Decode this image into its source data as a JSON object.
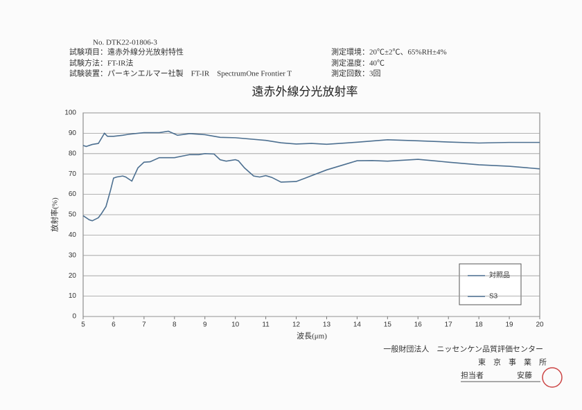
{
  "header": {
    "number": "No. DTK22-01806-3",
    "item": "試験項目：遠赤外線分光放射特性",
    "method": "試験方法：FT-IR法",
    "equipment": "試験装置：パーキンエルマー社製　FT-IR　SpectrumOne Frontier T",
    "environment": "測定環境：20℃±2℃、65%RH±4%",
    "temperature": "測定温度：40℃",
    "count": "測定回数：3回"
  },
  "chart_data": {
    "type": "line",
    "title": "遠赤外線分光放射率",
    "x_label": "波長(μm)",
    "y_label": "放射率(%)",
    "xlim": [
      5,
      20
    ],
    "xticks": [
      5,
      6,
      7,
      8,
      9,
      10,
      11,
      12,
      13,
      14,
      15,
      16,
      17,
      18,
      19,
      20
    ],
    "ylim": [
      0,
      100
    ],
    "yticks": [
      0,
      10,
      20,
      30,
      40,
      50,
      60,
      70,
      80,
      90,
      100
    ],
    "grid": true,
    "legend": "lower right",
    "series": [
      {
        "name": "対照品",
        "color": "#4c6f90",
        "x": [
          5,
          5.2,
          5.3,
          5.5,
          5.6,
          5.75,
          5.9,
          6,
          6.1,
          6.3,
          6.4,
          6.6,
          6.8,
          7,
          7.2,
          7.5,
          8,
          8.5,
          8.8,
          9,
          9.3,
          9.5,
          9.7,
          10,
          10.1,
          10.3,
          10.6,
          10.8,
          11,
          11.2,
          11.5,
          12,
          12.3,
          13,
          14,
          14.5,
          15,
          16,
          16.5,
          17,
          18,
          19,
          20
        ],
        "values": [
          49.5,
          47.5,
          47,
          48.5,
          50.5,
          54,
          62,
          68,
          68.5,
          69,
          68.5,
          66.5,
          73,
          75.8,
          76,
          78,
          78,
          79.5,
          79.5,
          80,
          79.8,
          77,
          76.3,
          77,
          76.5,
          73,
          69,
          68.5,
          69.2,
          68.3,
          66,
          66.3,
          68,
          72,
          76.5,
          76.6,
          76.3,
          77.2,
          76.5,
          75.8,
          74.5,
          73.8,
          72.5
        ]
      },
      {
        "name": "S3",
        "color": "#4c6f90",
        "x": [
          5,
          5.1,
          5.3,
          5.5,
          5.7,
          5.8,
          6,
          6.3,
          6.5,
          6.8,
          7,
          7.5,
          7.8,
          8.1,
          8.5,
          9,
          9.5,
          10,
          11,
          11.5,
          12,
          12.5,
          13,
          14,
          15,
          16,
          17,
          18,
          19,
          20
        ],
        "values": [
          84,
          83.5,
          84.5,
          85,
          90,
          88.5,
          88.5,
          89,
          89.5,
          90,
          90.3,
          90.3,
          91,
          89,
          89.8,
          89.3,
          88,
          87.8,
          86.5,
          85.3,
          84.7,
          85,
          84.6,
          85.6,
          86.8,
          86.3,
          85.7,
          85.2,
          85.5,
          85.5
        ]
      }
    ]
  },
  "footer": {
    "organization": "一般財団法人　ニッセンケン品質評価センター",
    "office": "東　京　事　業　所",
    "person_label": "担当者",
    "person": "安藤"
  }
}
